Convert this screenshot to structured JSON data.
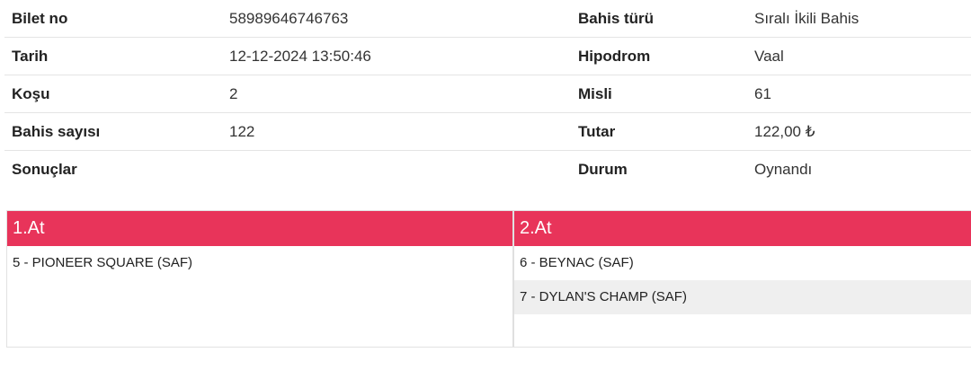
{
  "details": [
    {
      "label": "Bilet no",
      "value": "58989646746763",
      "label2": "Bahis türü",
      "value2": "Sıralı İkili Bahis"
    },
    {
      "label": "Tarih",
      "value": "12-12-2024 13:50:46",
      "label2": "Hipodrom",
      "value2": "Vaal"
    },
    {
      "label": "Koşu",
      "value": "2",
      "label2": "Misli",
      "value2": "61"
    },
    {
      "label": "Bahis sayısı",
      "value": "122",
      "label2": "Tutar",
      "value2": "122,00 ₺"
    },
    {
      "label": "Sonuçlar",
      "value": "",
      "label2": "Durum",
      "value2": "Oynandı"
    }
  ],
  "horses": {
    "accent_color": "#e8345a",
    "columns": [
      {
        "title": "1.At",
        "items": [
          "5 - PIONEER SQUARE (SAF)"
        ]
      },
      {
        "title": "2.At",
        "items": [
          "6 - BEYNAC (SAF)",
          "7 - DYLAN'S CHAMP (SAF)"
        ]
      }
    ]
  }
}
